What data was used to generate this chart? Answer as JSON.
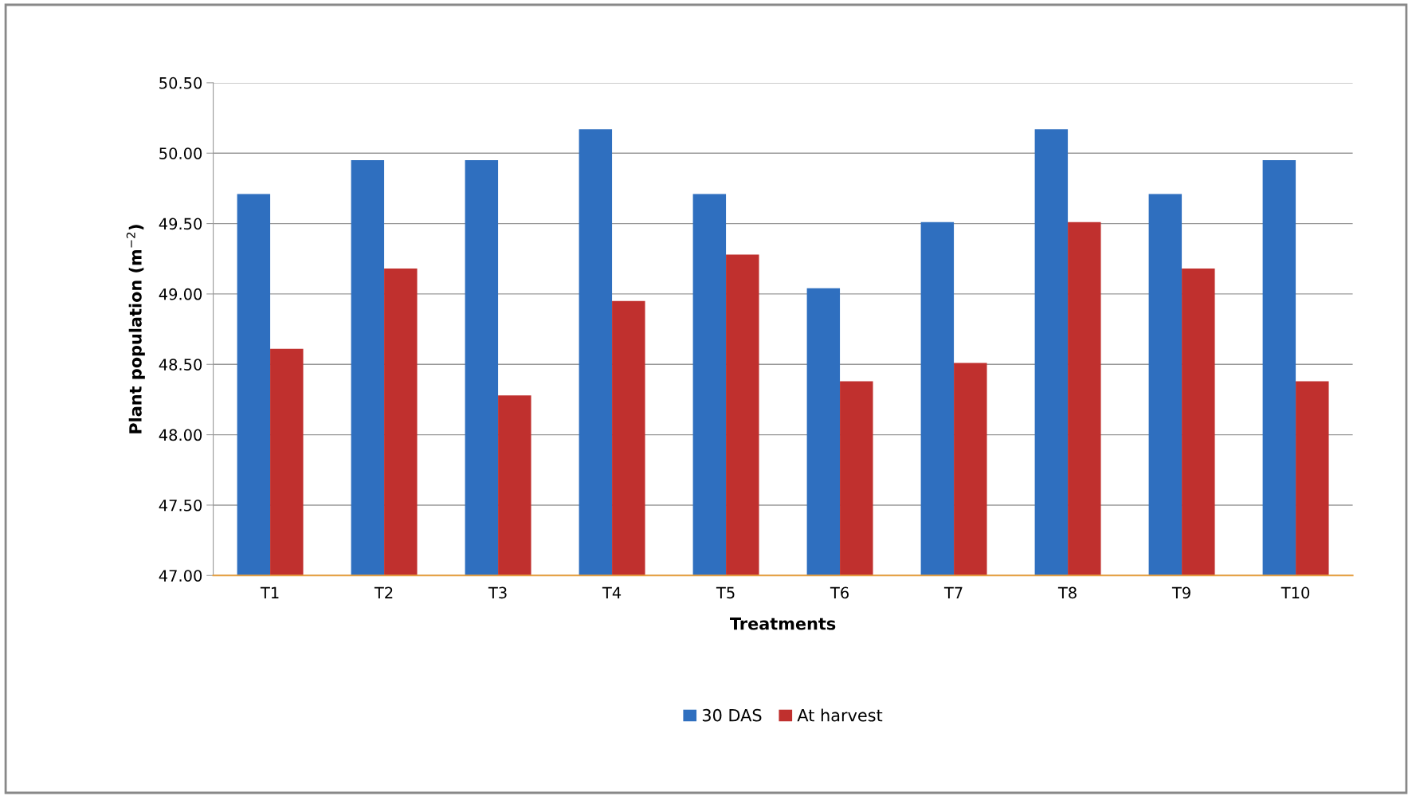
{
  "chart_data": {
    "type": "bar",
    "xlabel": "Treatments",
    "ylabel": "Plant population (m$^{−2}$)",
    "categories": [
      "T1",
      "T2",
      "T3",
      "T4",
      "T5",
      "T6",
      "T7",
      "T8",
      "T9",
      "T10"
    ],
    "series": [
      {
        "name": "30 DAS",
        "color": "#2f6fbf",
        "values": [
          49.71,
          49.95,
          49.95,
          50.17,
          49.71,
          49.04,
          49.51,
          50.17,
          49.71,
          49.95
        ]
      },
      {
        "name": "At harvest",
        "color": "#c0302e",
        "values": [
          48.61,
          49.18,
          48.28,
          48.95,
          49.28,
          48.38,
          48.51,
          49.51,
          49.18,
          48.38
        ]
      }
    ],
    "ylim": [
      47.0,
      50.5
    ],
    "yticks": [
      {
        "value": 47.0,
        "label": "47.00"
      },
      {
        "value": 47.5,
        "label": "47.50"
      },
      {
        "value": 48.0,
        "label": "48.00"
      },
      {
        "value": 48.5,
        "label": "48.50"
      },
      {
        "value": 49.0,
        "label": "49.00"
      },
      {
        "value": 49.5,
        "label": "49.50"
      },
      {
        "value": 50.0,
        "label": "50.00"
      },
      {
        "value": 50.5,
        "label": "50.50"
      }
    ],
    "grid": "y",
    "legend": "bottom"
  }
}
